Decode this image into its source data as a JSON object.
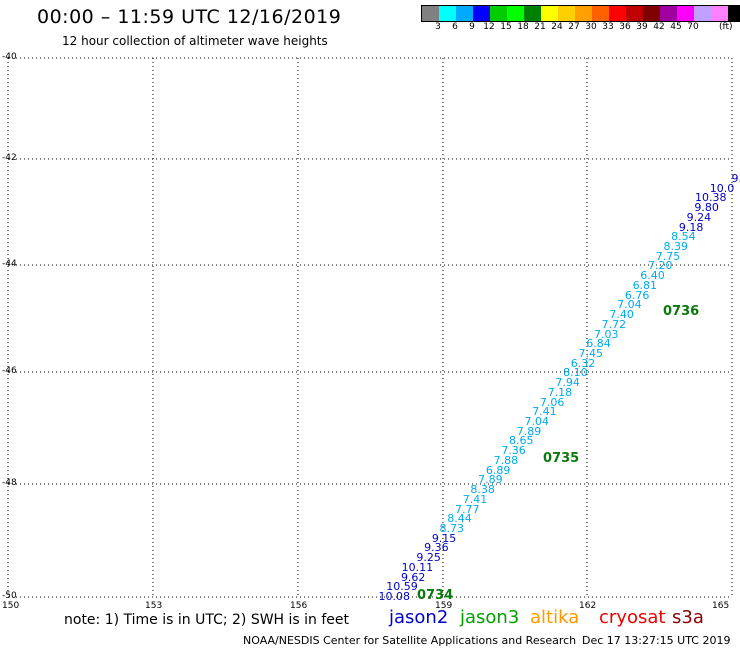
{
  "header": {
    "title": "00:00 – 11:59 UTC 12/16/2019",
    "subtitle": "12 hour collection of altimeter wave heights"
  },
  "legend": {
    "colors": [
      "#808080",
      "#00ffff",
      "#00aaff",
      "#0000ff",
      "#00cc00",
      "#00ff00",
      "#008000",
      "#ffff00",
      "#ffd000",
      "#ffa000",
      "#ff6000",
      "#ff0000",
      "#c00000",
      "#800000",
      "#a000a0",
      "#ff00ff",
      "#c0a0ff",
      "#ff80ff",
      "#000000"
    ],
    "labels": [
      "3",
      "6",
      "9",
      "12",
      "15",
      "18",
      "21",
      "24",
      "27",
      "30",
      "33",
      "36",
      "39",
      "42",
      "45",
      "70"
    ],
    "unit": "(ft)"
  },
  "map": {
    "lat_labels": [
      "-40",
      "-42",
      "-44",
      "-46",
      "-48",
      "-50"
    ],
    "lon_labels": [
      "150",
      "153",
      "156",
      "159",
      "162",
      "165"
    ]
  },
  "track": {
    "points": [
      {
        "v": "10.08",
        "c": "#0000cc"
      },
      {
        "v": "10.59",
        "c": "#0000cc"
      },
      {
        "v": "9.62",
        "c": "#0000cc"
      },
      {
        "v": "10.11",
        "c": "#0000cc"
      },
      {
        "v": "9.25",
        "c": "#0000cc"
      },
      {
        "v": "9.36",
        "c": "#0000cc"
      },
      {
        "v": "9.15",
        "c": "#0000cc"
      },
      {
        "v": "8.73",
        "c": "#00aaee"
      },
      {
        "v": "8.44",
        "c": "#00aaee"
      },
      {
        "v": "7.77",
        "c": "#00aaee"
      },
      {
        "v": "7.41",
        "c": "#00aaee"
      },
      {
        "v": "8.38",
        "c": "#00aaee"
      },
      {
        "v": "7.89",
        "c": "#00aaee"
      },
      {
        "v": "6.89",
        "c": "#00aaee"
      },
      {
        "v": "7.88",
        "c": "#00aaee"
      },
      {
        "v": "7.36",
        "c": "#00aaee"
      },
      {
        "v": "8.65",
        "c": "#00aaee"
      },
      {
        "v": "7.89",
        "c": "#00aaee"
      },
      {
        "v": "7.04",
        "c": "#00aaee"
      },
      {
        "v": "7.41",
        "c": "#00aaee"
      },
      {
        "v": "7.06",
        "c": "#00aaee"
      },
      {
        "v": "7.18",
        "c": "#00aaee"
      },
      {
        "v": "7.94",
        "c": "#00aaee"
      },
      {
        "v": "8.10",
        "c": "#00aaee"
      },
      {
        "v": "6.32",
        "c": "#00aaee"
      },
      {
        "v": "7.45",
        "c": "#00aaee"
      },
      {
        "v": "6.84",
        "c": "#00aaee"
      },
      {
        "v": "7.03",
        "c": "#00aaee"
      },
      {
        "v": "7.72",
        "c": "#00aaee"
      },
      {
        "v": "7.40",
        "c": "#00aaee"
      },
      {
        "v": "7.04",
        "c": "#00aaee"
      },
      {
        "v": "6.76",
        "c": "#00aaee"
      },
      {
        "v": "6.81",
        "c": "#00aaee"
      },
      {
        "v": "6.40",
        "c": "#00aaee"
      },
      {
        "v": "7.20",
        "c": "#00aaee"
      },
      {
        "v": "7.75",
        "c": "#00aaee"
      },
      {
        "v": "8.39",
        "c": "#00aaee"
      },
      {
        "v": "8.54",
        "c": "#00aaee"
      },
      {
        "v": "9.18",
        "c": "#0000cc"
      },
      {
        "v": "9.24",
        "c": "#0000cc"
      },
      {
        "v": "9.80",
        "c": "#0000cc"
      },
      {
        "v": "10.38",
        "c": "#0000cc"
      },
      {
        "v": "10.0",
        "c": "#0000cc"
      },
      {
        "v": "9.",
        "c": "#0000cc"
      }
    ],
    "times": [
      "0734",
      "0735",
      "0736"
    ]
  },
  "footer": {
    "note": "note: 1) Time is in UTC; 2) SWH is in feet",
    "satellites": [
      {
        "name": "jason2",
        "color": "#0000cc"
      },
      {
        "name": "jason3",
        "color": "#00a000"
      },
      {
        "name": "altika",
        "color": "#ff9900"
      },
      {
        "name": "cryosat",
        "color": "#ee0000"
      },
      {
        "name": "s3a",
        "color": "#880000"
      }
    ],
    "credit": "NOAA/NESDIS Center for Satellite Applications and Research",
    "timestamp": "Dec 17 13:27:15 UTC 2019"
  }
}
